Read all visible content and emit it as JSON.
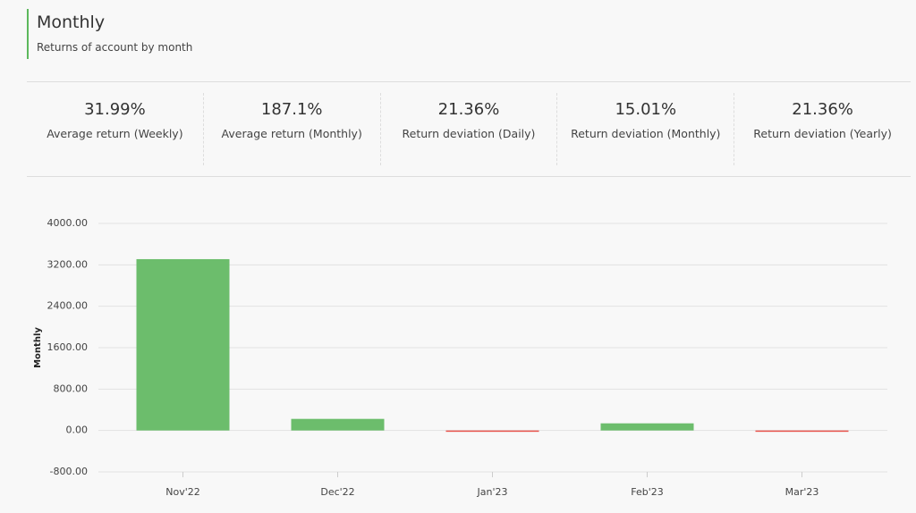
{
  "header": {
    "title": "Monthly",
    "subtitle": "Returns of account by month"
  },
  "stats": [
    {
      "value": "31.99%",
      "label": "Average return (Weekly)"
    },
    {
      "value": "187.1%",
      "label": "Average return (Monthly)"
    },
    {
      "value": "21.36%",
      "label": "Return deviation (Daily)"
    },
    {
      "value": "15.01%",
      "label": "Return deviation (Monthly)"
    },
    {
      "value": "21.36%",
      "label": "Return deviation (Yearly)"
    }
  ],
  "chart_data": {
    "type": "bar",
    "y_label": "Monthly",
    "categories": [
      "Nov'22",
      "Dec'22",
      "Jan'23",
      "Feb'23",
      "Mar'23"
    ],
    "values": [
      3310,
      224,
      -10,
      138,
      -20
    ],
    "color": "#6cbd6c",
    "negative_color": "#e8534b",
    "ylim": [
      -800,
      4000
    ],
    "yticks": [
      {
        "value": -800,
        "label": "-800.00"
      },
      {
        "value": 0,
        "label": "0.00"
      },
      {
        "value": 800,
        "label": "800.00"
      },
      {
        "value": 1600,
        "label": "1600.00"
      },
      {
        "value": 2400,
        "label": "2400.00"
      },
      {
        "value": 3200,
        "label": "3200.00"
      },
      {
        "value": 4000,
        "label": "4000.00"
      }
    ],
    "grid": true
  }
}
